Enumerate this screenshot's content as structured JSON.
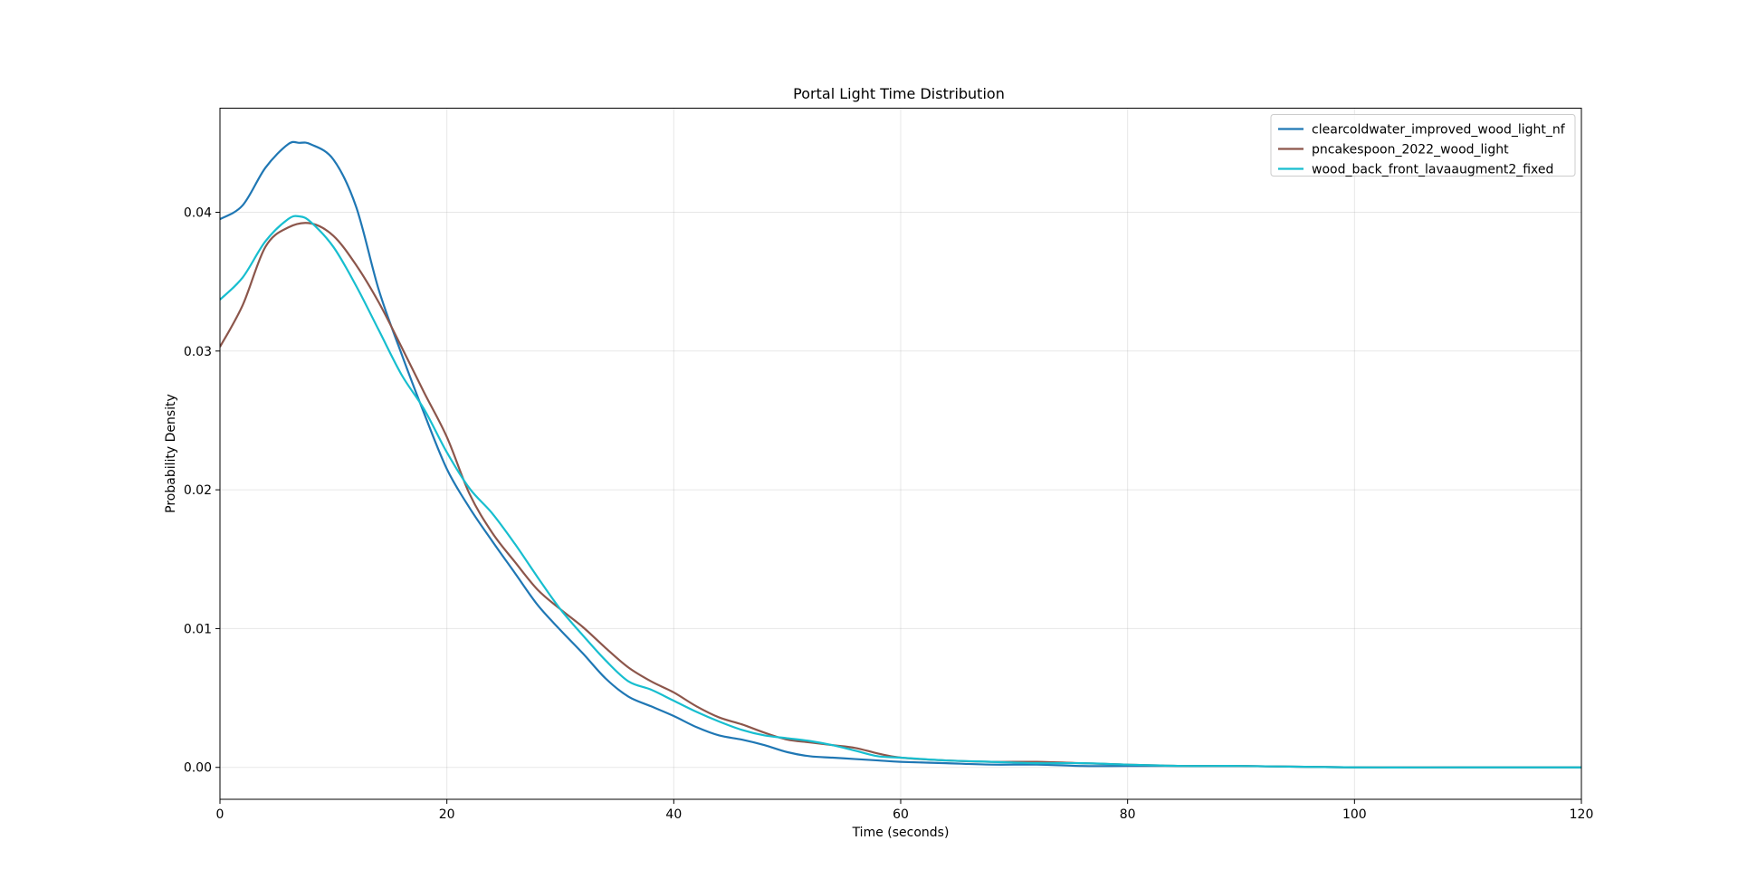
{
  "chart_data": {
    "type": "line",
    "title": "Portal Light Time Distribution",
    "xlabel": "Time (seconds)",
    "ylabel": "Probability Density",
    "xlim": [
      0,
      120
    ],
    "ylim": [
      -0.0023,
      0.0475
    ],
    "x_ticks": [
      0,
      20,
      40,
      60,
      80,
      100,
      120
    ],
    "y_ticks": [
      0.0,
      0.01,
      0.02,
      0.03,
      0.04
    ],
    "y_tick_labels": [
      "0.00",
      "0.01",
      "0.02",
      "0.03",
      "0.04"
    ],
    "grid": true,
    "legend_position": "top-right",
    "series": [
      {
        "name": "clearcoldwater_improved_wood_light_nf",
        "color": "#1f77b4",
        "x": [
          0,
          2,
          4,
          6,
          7,
          8,
          10,
          12,
          14,
          16,
          18,
          20,
          22,
          24,
          26,
          28,
          30,
          32,
          34,
          36,
          38,
          40,
          42,
          44,
          46,
          48,
          50,
          52,
          54,
          56,
          58,
          60,
          64,
          68,
          72,
          76,
          80,
          85,
          90,
          100,
          110,
          120
        ],
        "y": [
          0.0395,
          0.0405,
          0.0432,
          0.0449,
          0.045,
          0.0449,
          0.0438,
          0.0404,
          0.0344,
          0.0298,
          0.0255,
          0.0215,
          0.0187,
          0.0163,
          0.014,
          0.0117,
          0.0099,
          0.0082,
          0.0064,
          0.0051,
          0.0044,
          0.0037,
          0.0029,
          0.0023,
          0.002,
          0.0016,
          0.0011,
          0.0008,
          0.0007,
          0.0006,
          0.0005,
          0.0004,
          0.0003,
          0.0002,
          0.0002,
          0.0001,
          0.0001,
          0.0001,
          0.0001,
          0.0,
          0.0,
          0.0
        ]
      },
      {
        "name": "pncakespoon_2022_wood_light",
        "color": "#8c564b",
        "x": [
          0,
          2,
          4,
          6,
          8,
          10,
          12,
          14,
          16,
          18,
          20,
          22,
          24,
          26,
          28,
          30,
          32,
          34,
          36,
          38,
          40,
          42,
          44,
          46,
          48,
          50,
          52,
          54,
          56,
          58,
          60,
          64,
          68,
          72,
          76,
          80,
          85,
          90,
          100,
          110,
          120
        ],
        "y": [
          0.0303,
          0.0333,
          0.0375,
          0.0389,
          0.0392,
          0.0383,
          0.0362,
          0.0335,
          0.0303,
          0.027,
          0.0238,
          0.0197,
          0.0169,
          0.0148,
          0.0128,
          0.0114,
          0.0101,
          0.0086,
          0.0072,
          0.0062,
          0.0054,
          0.0044,
          0.0036,
          0.0031,
          0.0025,
          0.002,
          0.0018,
          0.0016,
          0.0014,
          0.001,
          0.0007,
          0.0005,
          0.0004,
          0.0004,
          0.0003,
          0.0002,
          0.0001,
          0.0001,
          0.0,
          0.0,
          0.0
        ]
      },
      {
        "name": "wood_back_front_lavaaugment2_fixed",
        "color": "#17becf",
        "x": [
          0,
          2,
          4,
          6,
          7,
          8,
          10,
          12,
          14,
          16,
          18,
          20,
          22,
          24,
          26,
          28,
          30,
          32,
          34,
          36,
          38,
          40,
          42,
          44,
          46,
          48,
          50,
          52,
          54,
          56,
          58,
          60,
          64,
          68,
          72,
          76,
          80,
          85,
          90,
          100,
          110,
          120
        ],
        "y": [
          0.0337,
          0.0353,
          0.0379,
          0.0395,
          0.0397,
          0.0393,
          0.0375,
          0.0347,
          0.0315,
          0.0283,
          0.0258,
          0.0227,
          0.0201,
          0.0183,
          0.0161,
          0.0137,
          0.0114,
          0.0095,
          0.0077,
          0.0062,
          0.0056,
          0.0048,
          0.004,
          0.0033,
          0.0027,
          0.0023,
          0.0021,
          0.0019,
          0.0016,
          0.0012,
          0.0008,
          0.0007,
          0.0005,
          0.0004,
          0.0003,
          0.0003,
          0.0002,
          0.0001,
          0.0001,
          0.0,
          0.0,
          0.0
        ]
      }
    ]
  }
}
